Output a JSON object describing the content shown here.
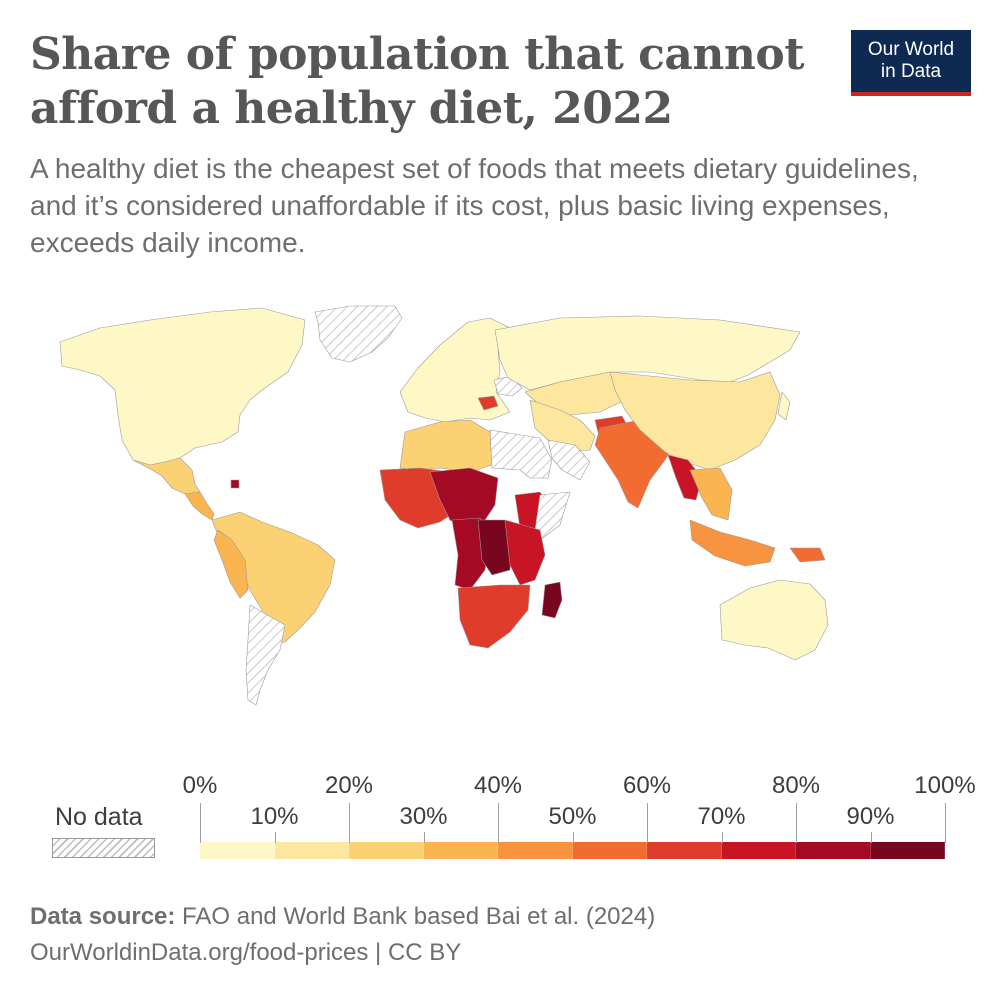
{
  "header": {
    "title": "Share of population that cannot afford a healthy diet, 2022",
    "subtitle": "A healthy diet is the cheapest set of foods that meets dietary guidelines, and it’s considered unaffordable if its cost, plus basic living expenses, exceeds daily income.",
    "logo_line1": "Our World",
    "logo_line2": "in Data"
  },
  "legend": {
    "no_data_label": "No data",
    "upper_ticks": [
      "0%",
      "20%",
      "40%",
      "60%",
      "80%",
      "100%"
    ],
    "lower_ticks": [
      "10%",
      "30%",
      "50%",
      "70%",
      "90%"
    ],
    "colors": [
      "#fef8c7",
      "#fde79e",
      "#fcd174",
      "#fbb550",
      "#f89340",
      "#f26c32",
      "#e03c2c",
      "#c91425",
      "#a50a25",
      "#79061f"
    ],
    "no_data_color": "#ffffff"
  },
  "chart_data": {
    "type": "choropleth",
    "title": "Share of population that cannot afford a healthy diet, 2022",
    "unit": "%",
    "bins": [
      0,
      10,
      20,
      30,
      40,
      50,
      60,
      70,
      80,
      90,
      100
    ],
    "regions": [
      {
        "name": "Greenland",
        "value": null
      },
      {
        "name": "North America",
        "value": 2
      },
      {
        "name": "Mexico",
        "value": 25
      },
      {
        "name": "Central America",
        "value": 35
      },
      {
        "name": "Haiti",
        "value": 85
      },
      {
        "name": "South America",
        "value": 25
      },
      {
        "name": "Peru / Andes",
        "value": 35
      },
      {
        "name": "Argentina",
        "value": null
      },
      {
        "name": "Europe",
        "value": 2
      },
      {
        "name": "Romania",
        "value": 62
      },
      {
        "name": "Ukraine",
        "value": null
      },
      {
        "name": "Russia",
        "value": 5
      },
      {
        "name": "Central Asia",
        "value": 12
      },
      {
        "name": "North Africa",
        "value": 22
      },
      {
        "name": "Libya / Sudan region",
        "value": null
      },
      {
        "name": "Middle East",
        "value": 15
      },
      {
        "name": "Saudi Arabia",
        "value": null
      },
      {
        "name": "Afghanistan / Pakistan",
        "value": 60
      },
      {
        "name": "South Asia",
        "value": 58
      },
      {
        "name": "China",
        "value": 12
      },
      {
        "name": "Myanmar",
        "value": 70
      },
      {
        "name": "Southeast Asia",
        "value": 35
      },
      {
        "name": "Indonesia",
        "value": 40
      },
      {
        "name": "Papua New Guinea",
        "value": 55
      },
      {
        "name": "West Africa",
        "value": 62
      },
      {
        "name": "Sahel",
        "value": 80
      },
      {
        "name": "Ethiopia",
        "value": 72
      },
      {
        "name": "Somalia",
        "value": null
      },
      {
        "name": "Central Africa",
        "value": 88
      },
      {
        "name": "DR Congo",
        "value": 92
      },
      {
        "name": "East Africa",
        "value": 78
      },
      {
        "name": "Southern Africa",
        "value": 62
      },
      {
        "name": "Madagascar",
        "value": 92
      },
      {
        "name": "Australia",
        "value": 2
      },
      {
        "name": "Japan",
        "value": 5
      }
    ]
  },
  "footer": {
    "source_label": "Data source:",
    "source_text": " FAO and World Bank based Bai et al. (2024)",
    "url_line": "OurWorldinData.org/food-prices | CC BY"
  }
}
